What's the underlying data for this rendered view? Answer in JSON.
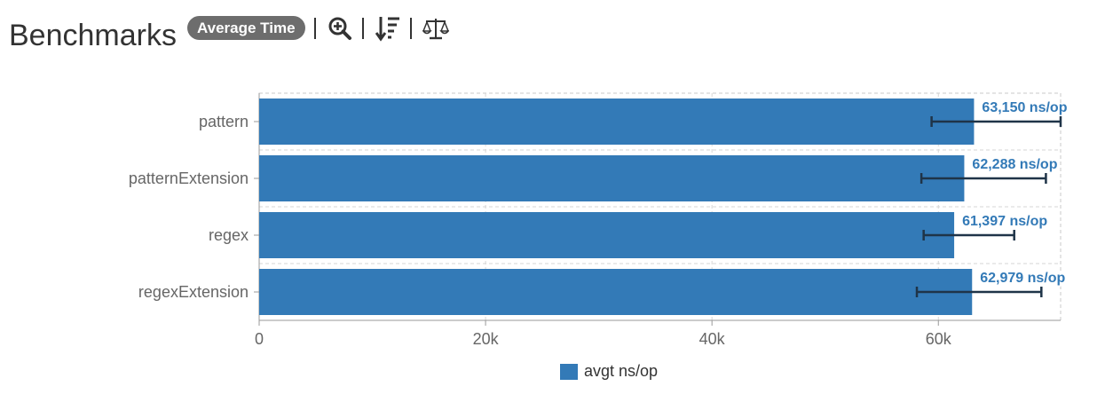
{
  "header": {
    "title": "Benchmarks",
    "mode_badge": "Average Time"
  },
  "icons": [
    "zoom-in-icon",
    "sort-descending-icon",
    "balance-scale-icon"
  ],
  "colors": {
    "bar": "#337ab7",
    "error_bar": "#1f3448",
    "value_label": "#337ab7",
    "axis_text": "#666666"
  },
  "chart_data": {
    "type": "bar",
    "orientation": "horizontal",
    "categories": [
      "pattern",
      "patternExtension",
      "regex",
      "regexExtension"
    ],
    "series": [
      {
        "name": "avgt ns/op",
        "values": [
          63150,
          62288,
          61397,
          62979
        ],
        "error_low": [
          59400,
          58500,
          58700,
          58100
        ],
        "error_high": [
          70800,
          69500,
          66700,
          69100
        ]
      }
    ],
    "value_labels": [
      "63,150 ns/op",
      "62,288 ns/op",
      "61,397 ns/op",
      "62,979 ns/op"
    ],
    "x_ticks": [
      0,
      20000,
      40000,
      60000
    ],
    "x_tick_labels": [
      "0",
      "20k",
      "40k",
      "60k"
    ],
    "xlim": [
      0,
      70800
    ],
    "grid": true,
    "legend_position": "bottom-center"
  }
}
